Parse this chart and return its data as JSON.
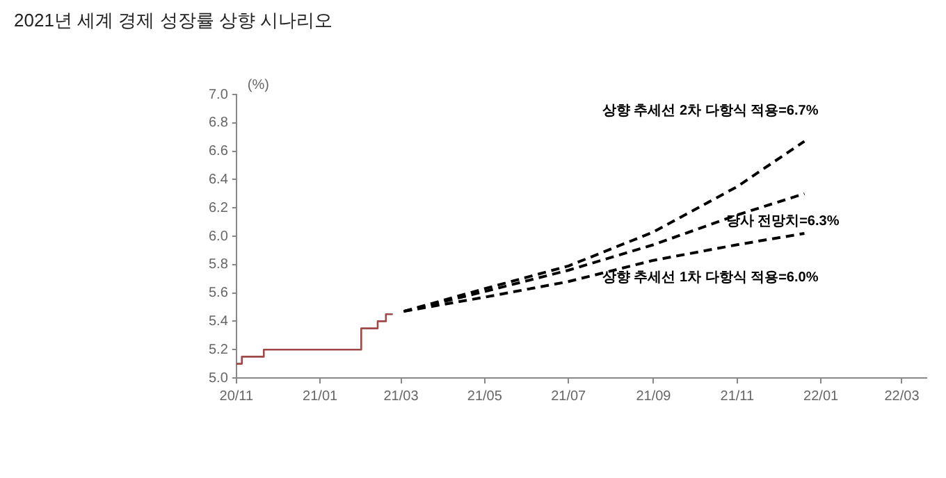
{
  "chart_data": {
    "type": "line",
    "title": "2021년 세계 경제 성장률 상향 시나리오",
    "ylabel": "(%)",
    "marker": "none",
    "grid": false,
    "legend": false,
    "xlim": [
      "2020-11-01",
      "2022-03-19"
    ],
    "xticks": [
      {
        "value": "2020-11-01",
        "label": "20/11"
      },
      {
        "value": "2021-01-01",
        "label": "21/01"
      },
      {
        "value": "2021-03-01",
        "label": "21/03"
      },
      {
        "value": "2021-05-01",
        "label": "21/05"
      },
      {
        "value": "2021-07-01",
        "label": "21/07"
      },
      {
        "value": "2021-09-01",
        "label": "21/09"
      },
      {
        "value": "2021-11-01",
        "label": "21/11"
      },
      {
        "value": "2022-01-01",
        "label": "22/01"
      },
      {
        "value": "2022-03-01",
        "label": "22/03"
      }
    ],
    "ylim": [
      5,
      7
    ],
    "yticks": [
      {
        "value": 5,
        "label": "5.0"
      },
      {
        "value": 5.2,
        "label": "5.2"
      },
      {
        "value": 5.4,
        "label": "5.4"
      },
      {
        "value": 5.6,
        "label": "5.6"
      },
      {
        "value": 5.8,
        "label": "5.8"
      },
      {
        "value": 6,
        "label": "6.0"
      },
      {
        "value": 6.2,
        "label": "6.2"
      },
      {
        "value": 6.4,
        "label": "6.4"
      },
      {
        "value": 6.6,
        "label": "6.6"
      },
      {
        "value": 6.8,
        "label": "6.8"
      },
      {
        "value": 7,
        "label": "7.0"
      }
    ],
    "series": [
      {
        "type": "step",
        "color": "#a04848",
        "x": [
          "2020-11-01",
          "2020-11-05",
          "2020-11-21",
          "2021-01-31",
          "2021-02-12",
          "2021-02-18",
          "2021-02-23"
        ],
        "values": [
          5.1,
          5.15,
          5.2,
          5.35,
          5.4,
          5.45,
          5.45
        ]
      },
      {
        "color": "#000000",
        "line_style": "dashed",
        "x": [
          "2021-03-03",
          "2021-05-01",
          "2021-07-01",
          "2021-09-01",
          "2021-11-01",
          "2021-12-20"
        ],
        "values": [
          5.47,
          5.63,
          5.79,
          6.03,
          6.35,
          6.67
        ]
      },
      {
        "color": "#000000",
        "line_style": "dashed",
        "x": [
          "2021-03-03",
          "2021-05-01",
          "2021-07-01",
          "2021-09-01",
          "2021-11-01",
          "2021-12-20"
        ],
        "values": [
          5.47,
          5.61,
          5.76,
          5.94,
          6.15,
          6.3
        ]
      },
      {
        "color": "#000000",
        "line_style": "dashed",
        "x": [
          "2021-03-03",
          "2021-05-01",
          "2021-07-01",
          "2021-09-01",
          "2021-11-01",
          "2021-12-20"
        ],
        "values": [
          5.47,
          5.57,
          5.68,
          5.83,
          5.94,
          6.02
        ]
      }
    ],
    "annotations": [
      {
        "text": "상향 추세선 2차 다항식 적용=6.7%",
        "x": "2021-12-20",
        "y": 6.67
      },
      {
        "text": "당사 전망치=6.3%",
        "x": "2021-12-20",
        "y": 6.3
      },
      {
        "text": "상향 추세선 1차 다항식 적용=6.0%",
        "x": "2021-12-20",
        "y": 6.02
      }
    ]
  }
}
